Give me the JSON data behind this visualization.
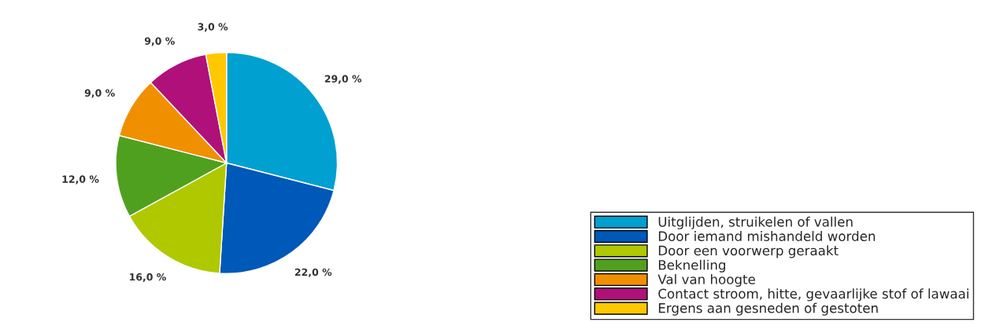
{
  "chart_data": {
    "type": "pie",
    "categories": [
      "Uitglijden, struikelen of vallen",
      "Door iemand mishandeld worden",
      "Door een voorwerp geraakt",
      "Beknelling",
      "Val van hoogte",
      "Contact stroom, hitte, gevaarlijke stof of lawaai",
      "Ergens aan gesneden of gestoten"
    ],
    "values": [
      29,
      22,
      16,
      12,
      9,
      9,
      3
    ],
    "value_labels": [
      "29,0 %",
      "22,0 %",
      "16,0 %",
      "12,0 %",
      "9,0 %",
      "9,0 %",
      "3,0 %"
    ],
    "colors": [
      "#00a0d0",
      "#0058b8",
      "#b0c800",
      "#50a020",
      "#f09000",
      "#b0107a",
      "#ffc800"
    ],
    "legend": "bottom right"
  }
}
